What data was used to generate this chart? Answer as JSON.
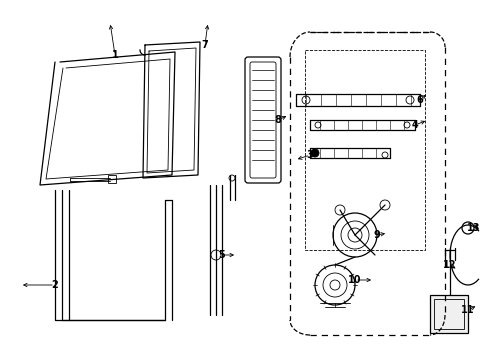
{
  "bg_color": "#ffffff",
  "line_color": "#000000",
  "gray": "#888888",
  "light_gray": "#aaaaaa"
}
